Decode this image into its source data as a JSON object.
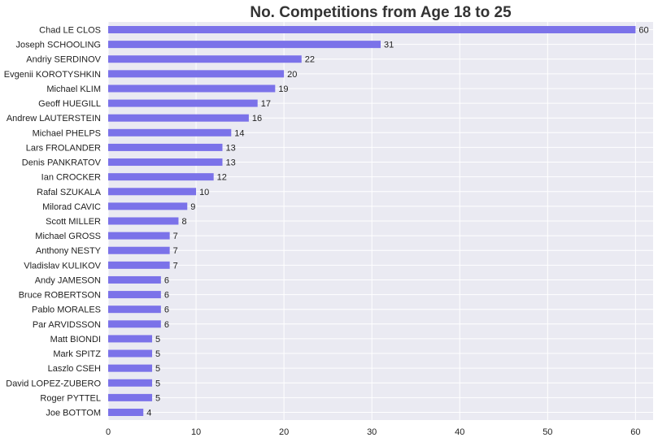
{
  "chart_data": {
    "type": "bar",
    "orientation": "horizontal",
    "title": "No. Competitions from Age 18 to 25",
    "xlabel": "",
    "ylabel": "",
    "xlim": [
      0,
      62
    ],
    "xticks": [
      0,
      10,
      20,
      30,
      40,
      50,
      60
    ],
    "grid": true,
    "legend": "none",
    "bar_color": "#7b72e9",
    "background_color": "#eaeaf2",
    "categories": [
      "Chad LE CLOS",
      "Joseph SCHOOLING",
      "Andriy SERDINOV",
      "Evgenii KOROTYSHKIN",
      "Michael KLIM",
      "Geoff HUEGILL",
      "Andrew LAUTERSTEIN",
      "Michael PHELPS",
      "Lars FROLANDER",
      "Denis PANKRATOV",
      "Ian CROCKER",
      "Rafal SZUKALA",
      "Milorad CAVIC",
      "Scott MILLER",
      "Michael GROSS",
      "Anthony NESTY",
      "Vladislav KULIKOV",
      "Andy JAMESON",
      "Bruce ROBERTSON",
      "Pablo MORALES",
      "Par ARVIDSSON",
      "Matt BIONDI",
      "Mark SPITZ",
      "Laszlo CSEH",
      "David LOPEZ-ZUBERO",
      "Roger PYTTEL",
      "Joe BOTTOM"
    ],
    "values": [
      60,
      31,
      22,
      20,
      19,
      17,
      16,
      14,
      13,
      13,
      12,
      10,
      9,
      8,
      7,
      7,
      7,
      6,
      6,
      6,
      6,
      5,
      5,
      5,
      5,
      5,
      4
    ]
  }
}
